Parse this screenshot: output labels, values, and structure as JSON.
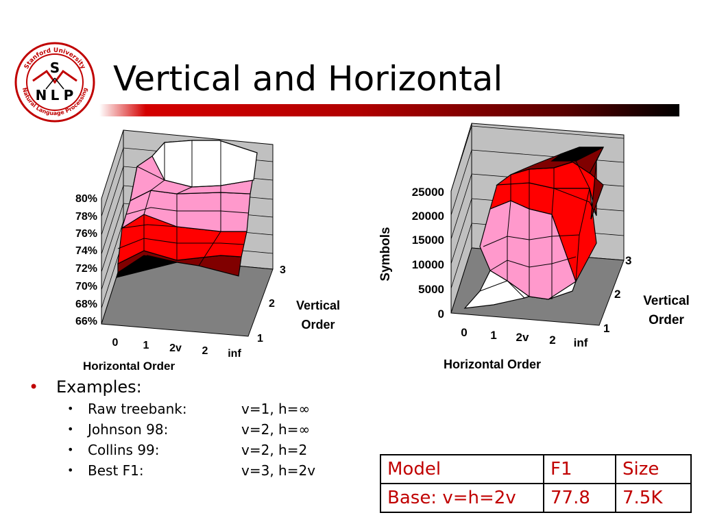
{
  "logo": {
    "top_text": "Stanford University",
    "bottom_text": "Natural Language Processing",
    "letters": [
      "S",
      "N",
      "L",
      "P"
    ]
  },
  "slide": {
    "title": "Vertical and Horizontal"
  },
  "colors": {
    "accent": "#c00000",
    "pink": "#ff99cc",
    "red": "#ff0000",
    "dark_red": "#800000",
    "floor": "#808080",
    "wall": "#c0c0c0"
  },
  "chart_data": [
    {
      "type": "surface",
      "x_label": "Horizontal Order",
      "y_label": "Vertical Order",
      "x_ticks": [
        "0",
        "1",
        "2v",
        "2",
        "inf"
      ],
      "y_ticks": [
        "1",
        "2",
        "3"
      ],
      "z_ticks": [
        "66%",
        "68%",
        "70%",
        "72%",
        "74%",
        "76%",
        "78%",
        "80%"
      ],
      "z_label": ""
    },
    {
      "type": "surface",
      "x_label": "Horizontal Order",
      "y_label": "Vertical Order",
      "z_label": "Symbols",
      "x_ticks": [
        "0",
        "1",
        "2v",
        "2",
        "inf"
      ],
      "y_ticks": [
        "1",
        "2",
        "3"
      ],
      "z_ticks": [
        "0",
        "5000",
        "10000",
        "15000",
        "20000",
        "25000"
      ]
    }
  ],
  "bullets": {
    "main": "Examples:",
    "items": [
      {
        "name": "Raw treebank:",
        "value": "v=1, h=∞"
      },
      {
        "name": "Johnson 98:",
        "value": "v=2, h=∞"
      },
      {
        "name": "Collins 99:",
        "value": "v=2, h=2"
      },
      {
        "name": "Best F1:",
        "value": "v=3, h=2v"
      }
    ]
  },
  "table": {
    "header": [
      "Model",
      "F1",
      "Size"
    ],
    "row": [
      "Base: v=h=2v",
      "77.8",
      "7.5K"
    ]
  }
}
